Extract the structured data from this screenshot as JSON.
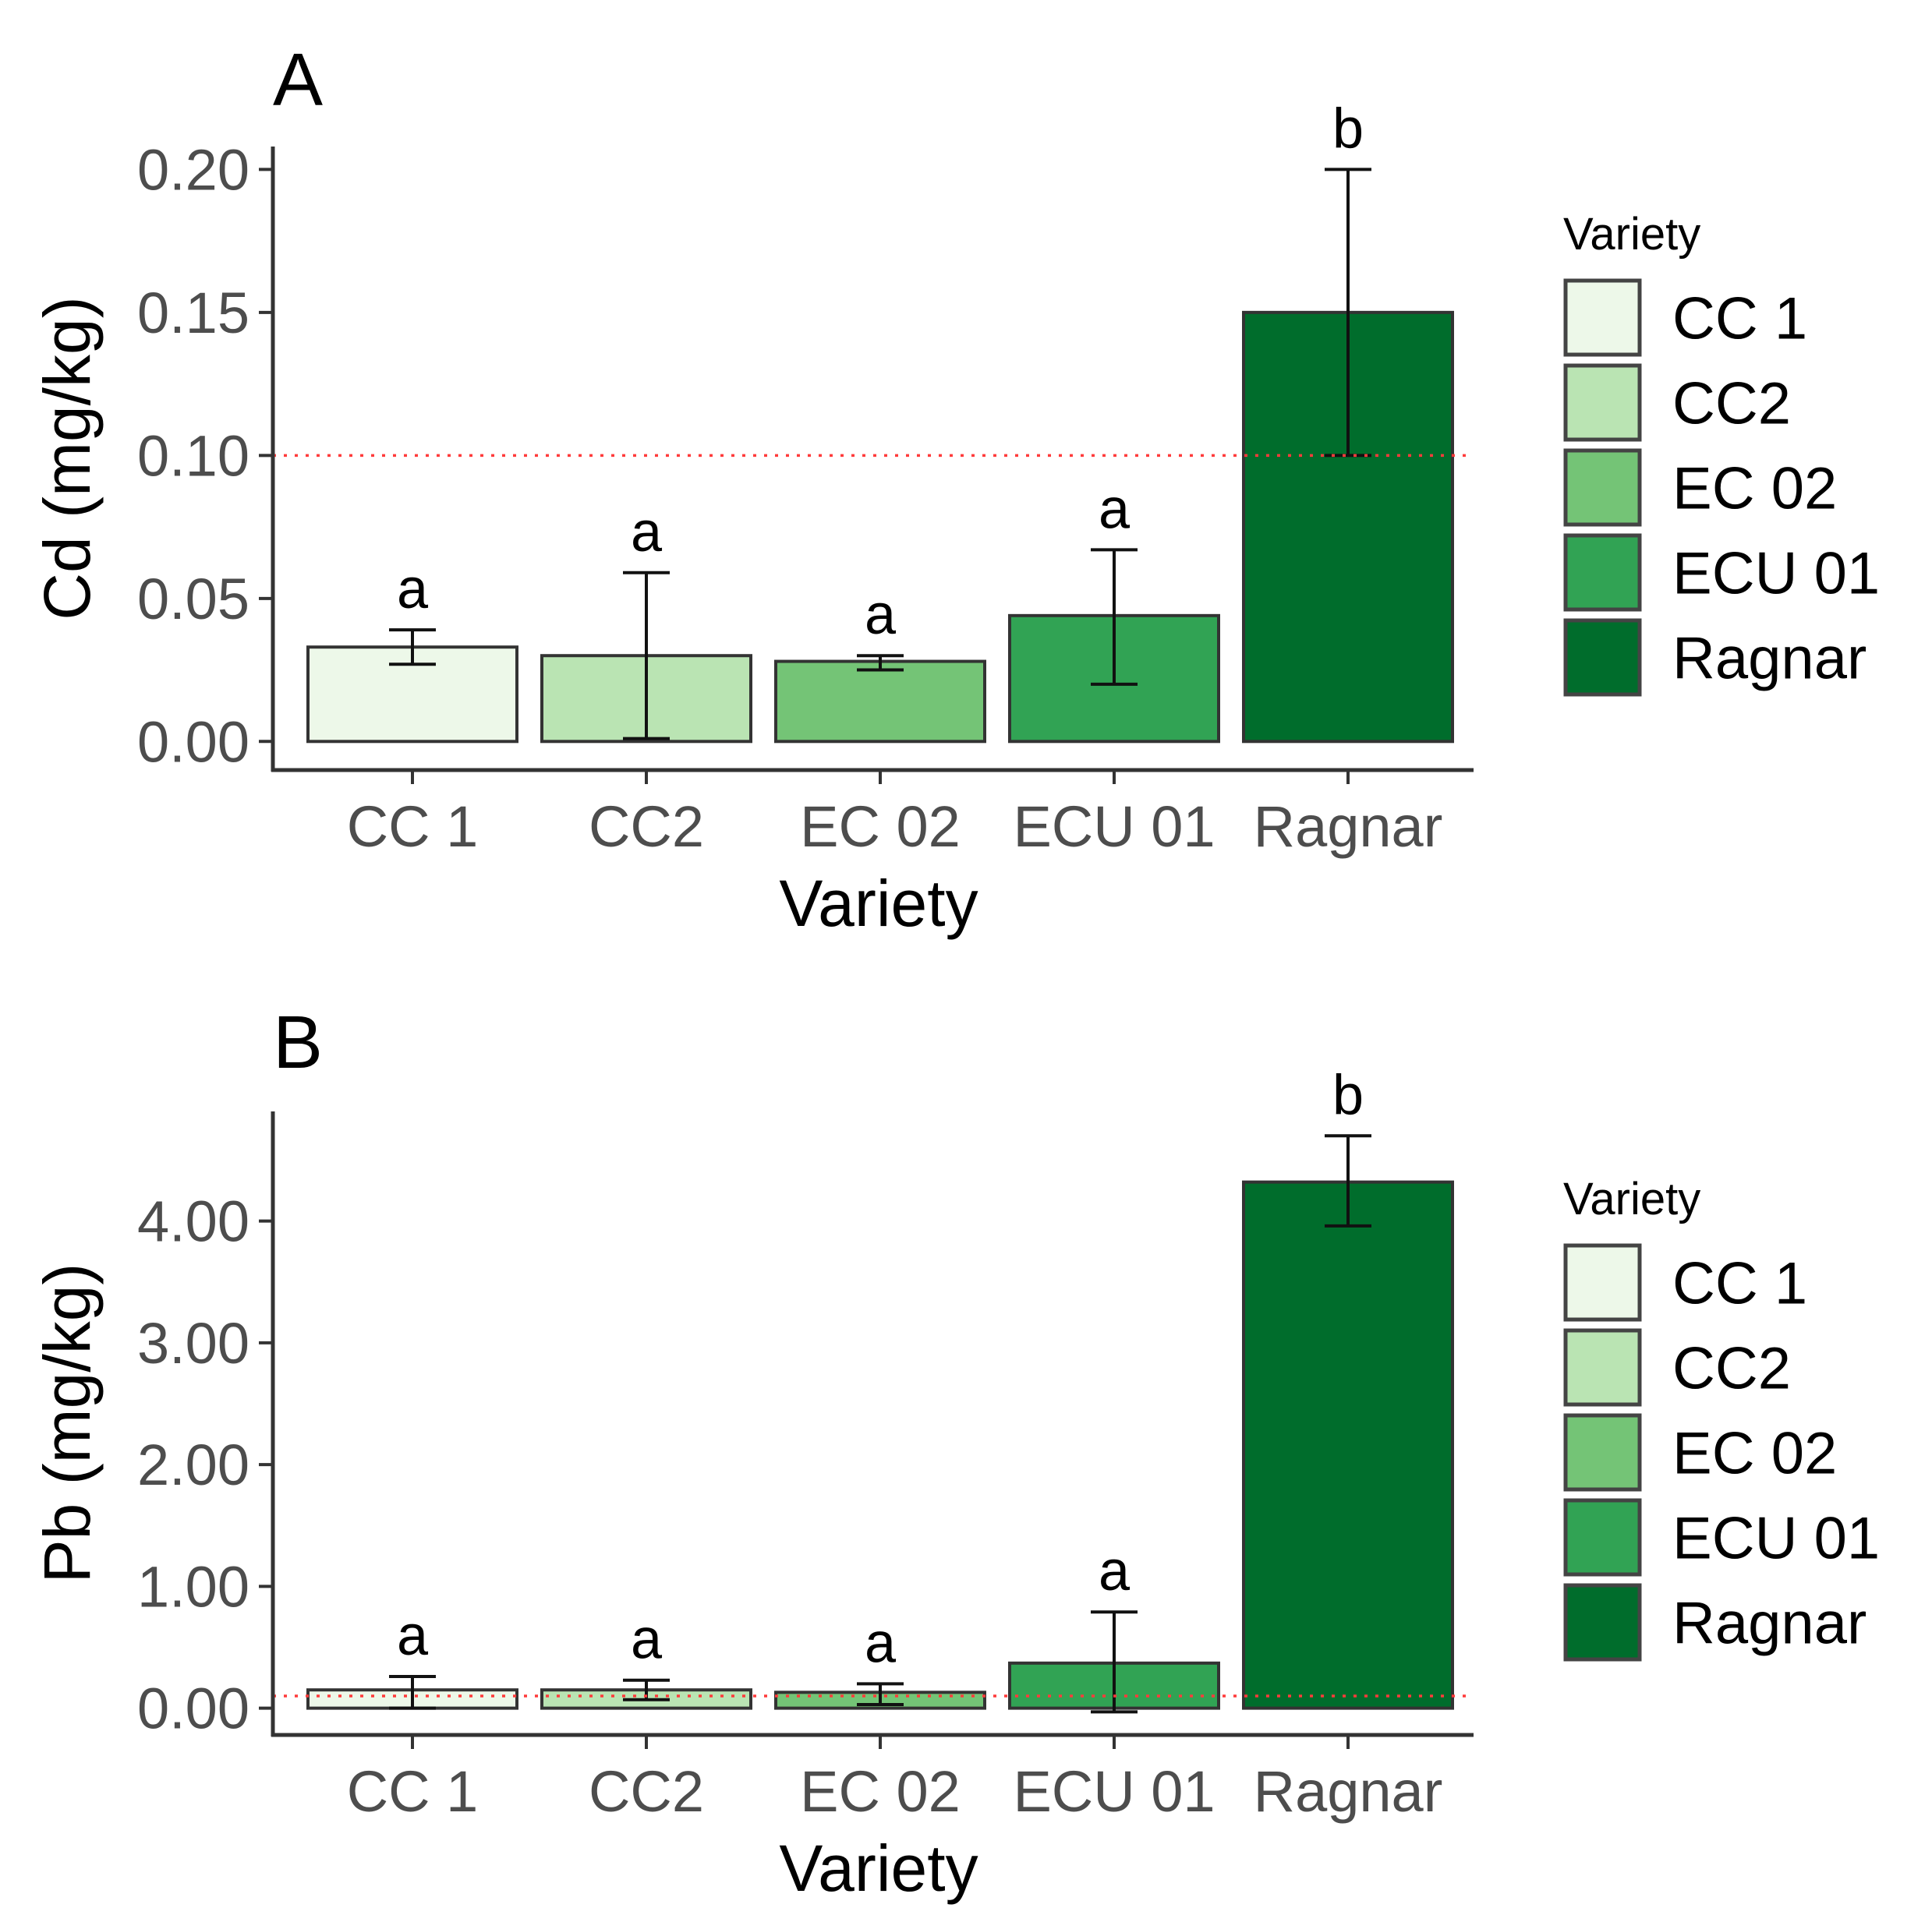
{
  "chart_data": [
    {
      "type": "bar",
      "panel_label": "A",
      "categories": [
        "CC 1",
        "CC2",
        "EC 02",
        "ECU 01",
        "Ragnar"
      ],
      "values": [
        0.033,
        0.03,
        0.028,
        0.044,
        0.15
      ],
      "error_low": [
        0.027,
        0.001,
        0.025,
        0.02,
        0.1
      ],
      "error_high": [
        0.039,
        0.059,
        0.03,
        0.067,
        0.2
      ],
      "significance": [
        "a",
        "a",
        "a",
        "a",
        "b"
      ],
      "reference_line": 0.1,
      "reference_color": "#ff3b3b",
      "xlabel": "Variety",
      "ylabel": "Cd (mg/kg)",
      "ylim": [
        -0.01,
        0.208
      ],
      "yticks": [
        0.0,
        0.05,
        0.1,
        0.15,
        0.2
      ],
      "ytick_labels": [
        "0.00",
        "0.05",
        "0.10",
        "0.15",
        "0.20"
      ],
      "legend_title": "Variety",
      "legend_position": "right",
      "colors": [
        "#edf8e9",
        "#bae4b3",
        "#74c476",
        "#31a354",
        "#006d2c"
      ]
    },
    {
      "type": "bar",
      "panel_label": "B",
      "categories": [
        "CC 1",
        "CC2",
        "EC 02",
        "ECU 01",
        "Ragnar"
      ],
      "values": [
        0.15,
        0.15,
        0.13,
        0.37,
        4.32
      ],
      "error_low": [
        0.0,
        0.07,
        0.03,
        -0.03,
        3.96
      ],
      "error_high": [
        0.26,
        0.23,
        0.2,
        0.79,
        4.7
      ],
      "significance": [
        "a",
        "a",
        "a",
        "a",
        "b"
      ],
      "reference_line": 0.1,
      "reference_color": "#ff3b3b",
      "xlabel": "Variety",
      "ylabel": "Pb (mg/kg)",
      "ylim": [
        -0.22,
        4.9
      ],
      "yticks": [
        0.0,
        1.0,
        2.0,
        3.0,
        4.0
      ],
      "ytick_labels": [
        "0.00",
        "1.00",
        "2.00",
        "3.00",
        "4.00"
      ],
      "legend_title": "Variety",
      "legend_position": "right",
      "colors": [
        "#edf8e9",
        "#bae4b3",
        "#74c476",
        "#31a354",
        "#006d2c"
      ]
    }
  ]
}
